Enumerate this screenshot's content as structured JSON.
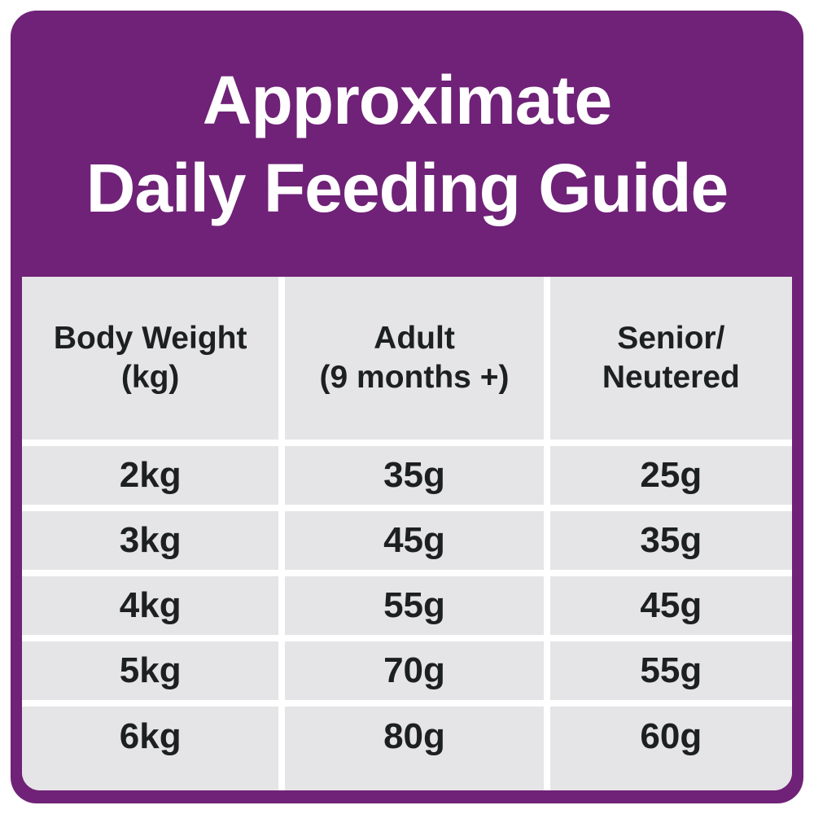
{
  "title": {
    "line1": "Approximate",
    "line2": "Daily Feeding Guide"
  },
  "table": {
    "headers": [
      {
        "line1": "Body Weight",
        "line2": "(kg)"
      },
      {
        "line1": "Adult",
        "line2": "(9 months +)"
      },
      {
        "line1": "Senior/",
        "line2": "Neutered"
      }
    ],
    "rows": [
      [
        "2kg",
        "35g",
        "25g"
      ],
      [
        "3kg",
        "45g",
        "35g"
      ],
      [
        "4kg",
        "55g",
        "45g"
      ],
      [
        "5kg",
        "70g",
        "55g"
      ],
      [
        "6kg",
        "80g",
        "60g"
      ]
    ]
  },
  "colors": {
    "purple": "#6f2277",
    "cell_gray": "#e5e4e6",
    "text_dark": "#1d2021",
    "white": "#ffffff"
  },
  "chart_data": {
    "type": "table",
    "title": "Approximate Daily Feeding Guide",
    "columns": [
      "Body Weight (kg)",
      "Adult (9 months +)",
      "Senior/Neutered"
    ],
    "rows": [
      [
        "2kg",
        "35g",
        "25g"
      ],
      [
        "3kg",
        "45g",
        "35g"
      ],
      [
        "4kg",
        "55g",
        "45g"
      ],
      [
        "5kg",
        "70g",
        "55g"
      ],
      [
        "6kg",
        "80g",
        "60g"
      ]
    ]
  }
}
